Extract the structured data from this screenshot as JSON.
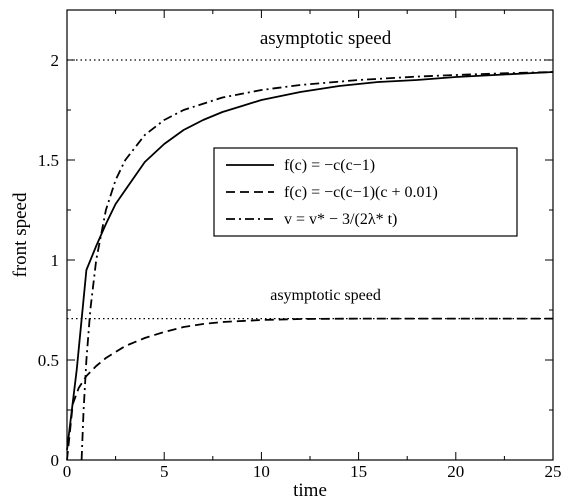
{
  "chart_data": {
    "type": "line",
    "xlabel": "time",
    "ylabel": "front speed",
    "xlim": [
      0,
      25
    ],
    "ylim": [
      0,
      2.25
    ],
    "xticks": [
      "0",
      "5",
      "10",
      "15",
      "20",
      "25"
    ],
    "yticks": [
      "0",
      "0.5",
      "1",
      "1.5",
      "2"
    ],
    "grid": false,
    "legend_position": "center-right",
    "annotations": [
      {
        "text": "asymptotic speed",
        "x": 13.3,
        "y": 2.08
      },
      {
        "text": "asymptotic speed",
        "x": 13.3,
        "y": 0.8
      }
    ],
    "reference_lines": [
      {
        "y": 2.0,
        "style": "dotted"
      },
      {
        "y": 0.707,
        "style": "dotted"
      }
    ],
    "series": [
      {
        "name": "f(c) = −c(c−1)",
        "style": "solid",
        "x": [
          0,
          0.5,
          1,
          1.5,
          2,
          2.5,
          3,
          4,
          5,
          6,
          7,
          8,
          9,
          10,
          12,
          14,
          16,
          18,
          20,
          22,
          24,
          25
        ],
        "y": [
          0.05,
          0.45,
          0.95,
          1.07,
          1.18,
          1.28,
          1.35,
          1.49,
          1.58,
          1.65,
          1.7,
          1.74,
          1.77,
          1.8,
          1.84,
          1.87,
          1.89,
          1.9,
          1.915,
          1.925,
          1.935,
          1.94
        ]
      },
      {
        "name": "f(c) = −c(c−1)(c + 0.01)",
        "style": "dashed",
        "x": [
          0,
          0.3,
          0.6,
          1,
          1.5,
          2,
          3,
          4,
          5,
          6,
          7,
          8,
          10,
          12,
          15,
          18,
          20,
          25
        ],
        "y": [
          0.0,
          0.28,
          0.36,
          0.42,
          0.47,
          0.51,
          0.57,
          0.61,
          0.64,
          0.665,
          0.68,
          0.69,
          0.7,
          0.705,
          0.707,
          0.707,
          0.707,
          0.707
        ]
      },
      {
        "name": "v = v* − 3/(2λ* t)",
        "style": "dashdot",
        "x": [
          0.75,
          0.85,
          1,
          1.2,
          1.5,
          2,
          2.5,
          3,
          4,
          5,
          6,
          8,
          10,
          12,
          15,
          18,
          20,
          22,
          25
        ],
        "y": [
          0.0,
          0.24,
          0.5,
          0.75,
          1.0,
          1.25,
          1.4,
          1.5,
          1.625,
          1.7,
          1.75,
          1.8125,
          1.85,
          1.875,
          1.9,
          1.917,
          1.925,
          1.932,
          1.94
        ]
      }
    ]
  }
}
